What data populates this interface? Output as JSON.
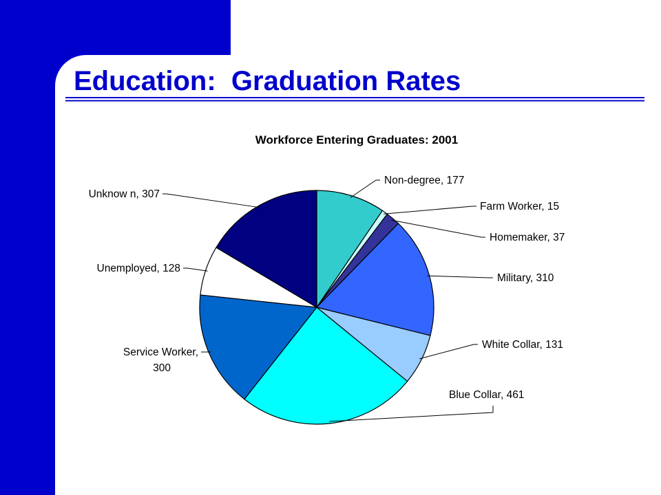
{
  "slide_title": "Education:  Graduation Rates",
  "chart_data": {
    "type": "pie",
    "title": "Workforce Entering Graduates: 2001",
    "values": [
      177,
      15,
      37,
      310,
      131,
      461,
      300,
      128,
      307
    ],
    "value_labels": [
      "Non-degree, 177",
      "Farm Worker, 15",
      "Homemaker, 37",
      "Military, 310",
      "White Collar, 131",
      "Blue Collar, 461",
      "Service Worker, 300",
      "Unemployed, 128",
      "Unknow n, 307"
    ],
    "colors": [
      "#33cccc",
      "#ccffff",
      "#333399",
      "#3366ff",
      "#99ccff",
      "#00ffff",
      "#0066cc",
      "#ffffff",
      "#000080"
    ]
  }
}
